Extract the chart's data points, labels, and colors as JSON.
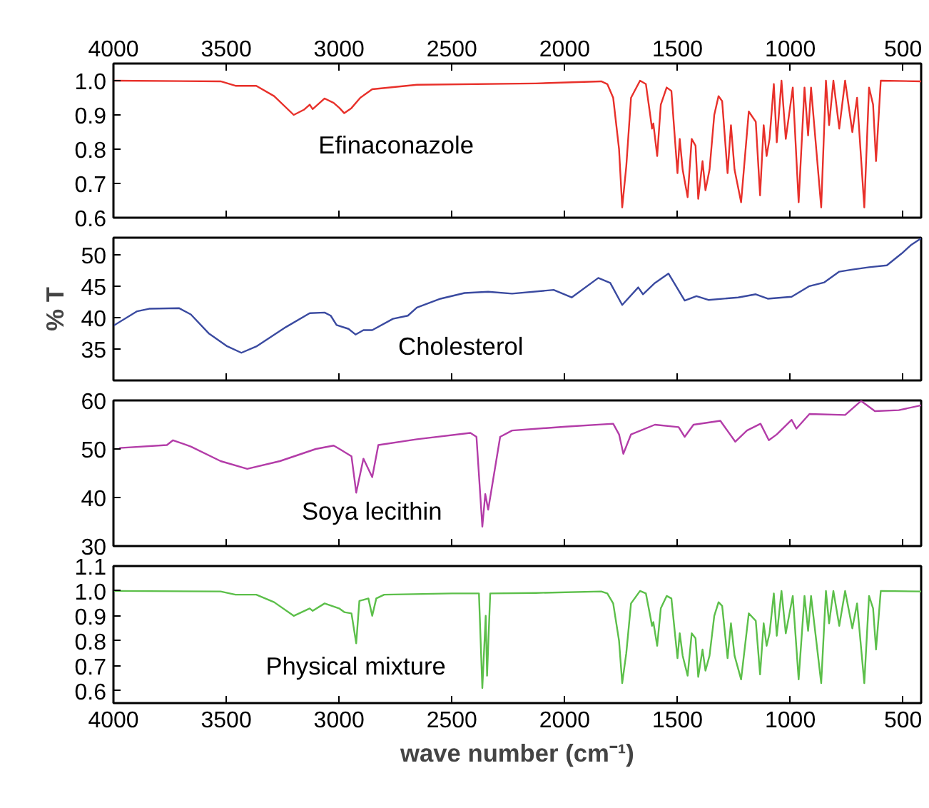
{
  "chart_data": [
    {
      "type": "line",
      "xlim": [
        4000,
        420
      ],
      "xticks": [
        4000,
        3500,
        3000,
        2500,
        2000,
        1500,
        1000,
        500
      ],
      "x2lim": [
        4000,
        420
      ],
      "x2ticks": [
        4000,
        3500,
        3000,
        2500,
        2000,
        1500,
        1000,
        500
      ],
      "ylim": [
        0.6,
        1.05
      ],
      "yticks": [
        {
          "value": 0.6,
          "label": "0.6"
        },
        {
          "value": 0.7,
          "label": "0.7"
        },
        {
          "value": 0.8,
          "label": "0.8"
        },
        {
          "value": 0.9,
          "label": "0.9"
        },
        {
          "value": 1.0,
          "label": "1.0"
        }
      ],
      "tick_labels": "y",
      "x": [
        4000,
        3525,
        3459,
        3367,
        3288,
        3201,
        3156,
        3130,
        3117,
        3064,
        3024,
        2998,
        2977,
        2945,
        2906,
        2853,
        2655,
        2128,
        1838,
        1811,
        1785,
        1759,
        1745,
        1727,
        1706,
        1666,
        1640,
        1621,
        1613,
        1607,
        1590,
        1574,
        1548,
        1527,
        1508,
        1500,
        1490,
        1477,
        1455,
        1437,
        1420,
        1408,
        1389,
        1376,
        1358,
        1337,
        1318,
        1302,
        1278,
        1263,
        1247,
        1218,
        1184,
        1153,
        1134,
        1118,
        1105,
        1092,
        1073,
        1060,
        1039,
        1020,
        989,
        963,
        937,
        921,
        908,
        890,
        863,
        842,
        828,
        809,
        783,
        757,
        725,
        704,
        672,
        651,
        633,
        620,
        599,
        420
      ],
      "series": [
        {
          "name": "Efinaconazole",
          "color": "#e8302a",
          "values": [
            1.0,
            0.998,
            0.985,
            0.985,
            0.955,
            0.9,
            0.915,
            0.93,
            0.917,
            0.948,
            0.935,
            0.92,
            0.905,
            0.92,
            0.95,
            0.975,
            0.988,
            0.992,
            0.998,
            0.99,
            0.95,
            0.8,
            0.63,
            0.75,
            0.95,
            1.0,
            0.99,
            0.9,
            0.86,
            0.875,
            0.78,
            0.93,
            0.98,
            0.97,
            0.8,
            0.73,
            0.83,
            0.74,
            0.66,
            0.83,
            0.81,
            0.655,
            0.765,
            0.68,
            0.74,
            0.9,
            0.955,
            0.94,
            0.73,
            0.87,
            0.74,
            0.645,
            0.91,
            0.88,
            0.665,
            0.87,
            0.78,
            0.83,
            0.99,
            0.82,
            1.0,
            0.83,
            0.98,
            0.645,
            0.98,
            0.84,
            0.98,
            0.84,
            0.63,
            1.0,
            0.87,
            1.0,
            0.86,
            1.0,
            0.85,
            0.95,
            0.63,
            0.98,
            0.93,
            0.765,
            1.0,
            0.998
          ]
        }
      ]
    },
    {
      "type": "line",
      "xlim": [
        4000,
        420
      ],
      "xticks": [
        4000,
        3500,
        3000,
        2500,
        2000,
        1500,
        1000,
        500
      ],
      "ylim": [
        30,
        52.7
      ],
      "yticks": [
        35,
        40,
        45,
        50
      ],
      "tick_labels": "y",
      "ylabel": "% T",
      "x": [
        4000,
        3895,
        3842,
        3710,
        3657,
        3578,
        3499,
        3433,
        3367,
        3235,
        3130,
        3064,
        3037,
        3011,
        2958,
        2927,
        2892,
        2853,
        2761,
        2695,
        2655,
        2550,
        2444,
        2339,
        2233,
        2049,
        1969,
        1851,
        1798,
        1745,
        1674,
        1653,
        1600,
        1540,
        1468,
        1416,
        1363,
        1231,
        1153,
        1100,
        994,
        915,
        849,
        783,
        730,
        651,
        572,
        506,
        466,
        420
      ],
      "series": [
        {
          "name": "Cholesterol",
          "color": "#3a4aa0",
          "values": [
            38.7,
            41.0,
            41.4,
            41.5,
            40.5,
            37.5,
            35.5,
            34.4,
            35.4,
            38.5,
            40.7,
            40.8,
            40.3,
            38.8,
            38.2,
            37.3,
            38.0,
            38.0,
            39.8,
            40.3,
            41.6,
            43.0,
            43.9,
            44.1,
            43.8,
            44.4,
            43.2,
            46.3,
            45.5,
            42.0,
            44.8,
            43.7,
            45.5,
            47.0,
            42.7,
            43.4,
            42.8,
            43.2,
            43.7,
            43.0,
            43.3,
            45.0,
            45.6,
            47.3,
            47.6,
            48.0,
            48.3,
            50.2,
            51.5,
            52.6
          ]
        }
      ]
    },
    {
      "type": "line",
      "xlim": [
        4000,
        420
      ],
      "xticks": [
        4000,
        3500,
        3000,
        2500,
        2000,
        1500,
        1000,
        500
      ],
      "ylim": [
        30,
        60
      ],
      "yticks": [
        30,
        40,
        50,
        60
      ],
      "tick_labels": "y",
      "x": [
        3974,
        3763,
        3736,
        3657,
        3525,
        3407,
        3262,
        3103,
        3024,
        2998,
        2945,
        2924,
        2892,
        2853,
        2826,
        2655,
        2418,
        2391,
        2365,
        2352,
        2339,
        2286,
        2233,
        1996,
        1785,
        1759,
        1740,
        1706,
        1600,
        1495,
        1468,
        1429,
        1310,
        1244,
        1192,
        1132,
        1095,
        1060,
        994,
        973,
        915,
        757,
        686,
        625,
        519,
        420
      ],
      "series": [
        {
          "name": "Soya lecithin",
          "color": "#b33ca8",
          "values": [
            50.2,
            50.8,
            51.8,
            50.5,
            47.5,
            45.9,
            47.5,
            50.0,
            50.7,
            50.0,
            48.5,
            41.0,
            48.0,
            44.2,
            50.8,
            52.0,
            53.3,
            52.5,
            34.0,
            40.7,
            37.5,
            52.5,
            53.8,
            54.6,
            55.2,
            53.0,
            49.0,
            53.0,
            55.0,
            54.5,
            52.5,
            55.0,
            55.8,
            51.5,
            53.8,
            55.2,
            51.8,
            53.0,
            56.0,
            54.2,
            57.2,
            57.0,
            59.9,
            57.8,
            58.0,
            59.0
          ]
        }
      ]
    },
    {
      "type": "line",
      "xlim": [
        4000,
        420
      ],
      "xticks": [
        4000,
        3500,
        3000,
        2500,
        2000,
        1500,
        1000,
        500
      ],
      "ylim": [
        0.55,
        1.1
      ],
      "yticks": [
        {
          "value": 0.6,
          "label": "0.6"
        },
        {
          "value": 0.7,
          "label": "0.7"
        },
        {
          "value": 0.8,
          "label": "0.8"
        },
        {
          "value": 0.9,
          "label": "0.9"
        },
        {
          "value": 1.0,
          "label": "1.0"
        },
        {
          "value": 1.1,
          "label": "1.1"
        }
      ],
      "xlabel": "wave number (cm⁻¹)",
      "x": [
        4000,
        3525,
        3459,
        3367,
        3288,
        3201,
        3130,
        3117,
        3064,
        3000,
        2977,
        2945,
        2924,
        2910,
        2870,
        2853,
        2835,
        2800,
        2500,
        2380,
        2365,
        2350,
        2344,
        2330,
        2128,
        1838,
        1811,
        1785,
        1759,
        1745,
        1727,
        1706,
        1666,
        1640,
        1621,
        1613,
        1607,
        1590,
        1574,
        1548,
        1527,
        1508,
        1500,
        1490,
        1477,
        1455,
        1437,
        1420,
        1408,
        1389,
        1376,
        1358,
        1337,
        1318,
        1302,
        1278,
        1263,
        1247,
        1218,
        1184,
        1153,
        1134,
        1118,
        1105,
        1092,
        1073,
        1060,
        1039,
        1020,
        989,
        963,
        937,
        921,
        908,
        890,
        863,
        842,
        828,
        809,
        783,
        757,
        725,
        704,
        672,
        651,
        633,
        620,
        599,
        420
      ],
      "series": [
        {
          "name": "Physical mixture",
          "color": "#5cbf4a",
          "values": [
            1.0,
            0.998,
            0.985,
            0.985,
            0.955,
            0.9,
            0.93,
            0.92,
            0.95,
            0.93,
            0.915,
            0.91,
            0.79,
            0.96,
            0.97,
            0.9,
            0.97,
            0.985,
            0.99,
            0.99,
            0.61,
            0.9,
            0.66,
            0.99,
            0.992,
            0.998,
            0.99,
            0.95,
            0.8,
            0.63,
            0.75,
            0.95,
            1.0,
            0.99,
            0.9,
            0.86,
            0.875,
            0.78,
            0.93,
            0.98,
            0.97,
            0.8,
            0.73,
            0.83,
            0.74,
            0.66,
            0.83,
            0.81,
            0.655,
            0.765,
            0.68,
            0.74,
            0.9,
            0.955,
            0.94,
            0.73,
            0.87,
            0.74,
            0.645,
            0.91,
            0.88,
            0.665,
            0.87,
            0.78,
            0.83,
            0.99,
            0.82,
            1.0,
            0.83,
            0.98,
            0.645,
            0.98,
            0.84,
            0.98,
            0.84,
            0.63,
            1.0,
            0.87,
            1.0,
            0.86,
            1.0,
            0.85,
            0.95,
            0.63,
            0.98,
            0.93,
            0.765,
            1.0,
            0.998
          ]
        }
      ]
    }
  ]
}
